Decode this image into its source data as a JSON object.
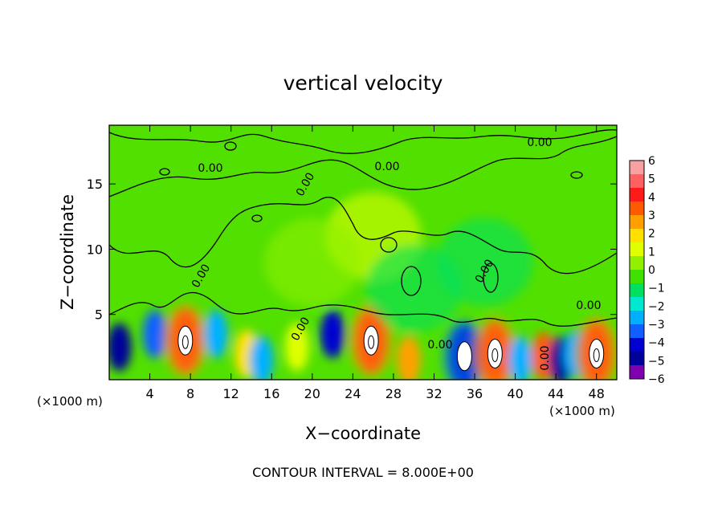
{
  "chart_data": {
    "type": "heatmap",
    "title": "vertical velocity",
    "xlabel": "X−coordinate",
    "ylabel": "Z−coordinate",
    "x_unit_left": "(×1000 m)",
    "x_unit_right": "(×1000 m)",
    "footer": "CONTOUR INTERVAL = 8.000E+00",
    "xlim": [
      0,
      50
    ],
    "ylim": [
      0,
      19.5
    ],
    "xticks": [
      4,
      8,
      12,
      16,
      20,
      24,
      28,
      32,
      36,
      40,
      44,
      48
    ],
    "yticks": [
      5,
      10,
      15
    ],
    "colorbar": {
      "range": [
        -6,
        6
      ],
      "ticks": [
        6,
        5,
        4,
        3,
        2,
        1,
        0,
        -1,
        -2,
        -3,
        -4,
        -5,
        -6
      ],
      "tick_labels": [
        "6",
        "5",
        "4",
        "3",
        "2",
        "1",
        "0",
        "−1",
        "−2",
        "−3",
        "−4",
        "−5",
        "−6"
      ],
      "colors": [
        "#f9a0a0",
        "#ff6060",
        "#ff1a1a",
        "#ff5a00",
        "#ffa000",
        "#ffe000",
        "#e0ff00",
        "#90f000",
        "#40e000",
        "#00e060",
        "#00e8d0",
        "#00b0ff",
        "#1060ff",
        "#0000d0",
        "#00009a",
        "#8000b0"
      ]
    },
    "contour_labels": [
      "0.00",
      "0.00",
      "0.00",
      "0.00",
      "0.00",
      "0.00",
      "0.00",
      "0.00",
      "0.00",
      "0.00"
    ],
    "features": [
      {
        "x": 1,
        "z": 2.5,
        "w": -5
      },
      {
        "x": 4.5,
        "z": 3.5,
        "w": -3.5
      },
      {
        "x": 7.5,
        "z": 3,
        "w": 6
      },
      {
        "x": 10.5,
        "z": 3.5,
        "w": -3
      },
      {
        "x": 13.5,
        "z": 2,
        "w": 2
      },
      {
        "x": 15,
        "z": 1.5,
        "w": -3
      },
      {
        "x": 18.5,
        "z": 2.5,
        "w": 1.5
      },
      {
        "x": 22,
        "z": 3.5,
        "w": -4
      },
      {
        "x": 25.8,
        "z": 3,
        "w": 6
      },
      {
        "x": 29.5,
        "z": 1.5,
        "w": 3
      },
      {
        "x": 35,
        "z": 1.8,
        "w": -6
      },
      {
        "x": 38,
        "z": 2,
        "w": 6
      },
      {
        "x": 40.5,
        "z": 1.5,
        "w": -3
      },
      {
        "x": 42.8,
        "z": 1.8,
        "w": 4
      },
      {
        "x": 44.5,
        "z": 1.5,
        "w": -5
      },
      {
        "x": 46,
        "z": 2,
        "w": -3
      },
      {
        "x": 48,
        "z": 2,
        "w": 6
      },
      {
        "x": 26,
        "z": 11,
        "w": 1
      },
      {
        "x": 20,
        "z": 9,
        "w": 0.8
      },
      {
        "x": 30,
        "z": 7,
        "w": -1.5
      },
      {
        "x": 37,
        "z": 9,
        "w": -1
      }
    ]
  }
}
